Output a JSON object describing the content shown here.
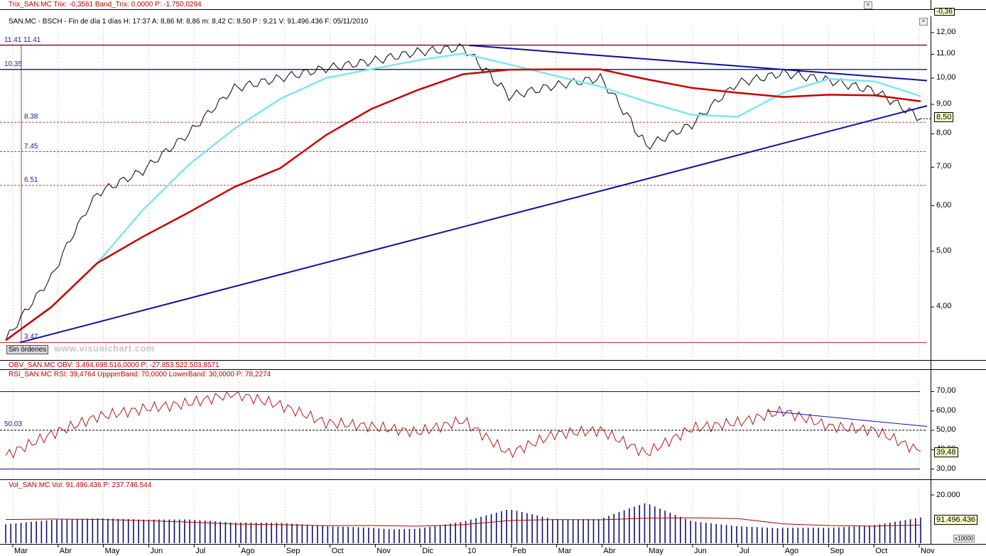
{
  "panels": {
    "trix": {
      "header": "Trix_SAN.MC  Trix: -0,3561  Band_Trix: 0,0000  P: -1.750,0294",
      "value_box": "-0,36"
    },
    "price": {
      "header": "SAN.MC - BSCH - Fin de día 1 días  H: 17:37  A: 8,86  M: 8,86  m: 8,42  C: 8,50  P : 9,21  V: 91.496.436  F: 05/11/2010",
      "header_color_part": "P : 9,21",
      "value_box": "8,50",
      "ticks": [
        "12,00",
        "11,00",
        "10,00",
        "9,00",
        "8,00",
        "7,00",
        "6,00",
        "5,00",
        "4,00"
      ],
      "levels": [
        {
          "label": "11.41  11.41",
          "value": 11.41
        },
        {
          "label": "10.35",
          "value": 10.35
        },
        {
          "label": "8.38",
          "value": 8.38
        },
        {
          "label": "7.45",
          "value": 7.45
        },
        {
          "label": "6.51",
          "value": 6.51
        },
        {
          "label": "3.47",
          "value": 3.47
        }
      ],
      "button": "Sin órdenes",
      "watermark": "www.visualchart.com"
    },
    "obv": {
      "header": "OBV_SAN.MC  OBV: 3.494.698.516,0000  P: -27.853.522.503,8571"
    },
    "rsi": {
      "header": "RSI_SAN.MC  RSI: 39,4764  UppperBand: 70,0000  LowerBand: 30,0000  P: 78,2274",
      "value_box": "39,48",
      "ticks": [
        "70,00",
        "60,00",
        "50,00",
        "40,00",
        "30,00"
      ],
      "level_label": "50.03"
    },
    "vol": {
      "header": "Vol_SAN.MC  Vol: 91.496.436  P: 237.746.544",
      "value_box": "91.496.436",
      "ticks": [
        "20.000"
      ],
      "multiplier": "x10000"
    }
  },
  "months": [
    "Mar",
    "Abr",
    "May",
    "Jun",
    "Jul",
    "Ago",
    "Sep",
    "Oct",
    "Nov",
    "Dic",
    "10",
    "Feb",
    "Mar",
    "Abr",
    "May",
    "Jun",
    "Jul",
    "Ago",
    "Sep",
    "Oct",
    "Nov"
  ],
  "colors": {
    "price_line": "#000000",
    "ma_fast": "#7fe5f0",
    "ma_slow": "#c80000",
    "trend": "#1010a0",
    "rsi": "#b00000",
    "volume": "#101070"
  },
  "chart_data": [
    {
      "type": "line",
      "title": "SAN.MC - BSCH - Fin de día 1 días",
      "categories": [
        "Mar",
        "Abr",
        "May",
        "Jun",
        "Jul",
        "Ago",
        "Sep",
        "Oct",
        "Nov",
        "Dic",
        "10",
        "Feb",
        "Mar",
        "Abr",
        "May",
        "Jun",
        "Jul",
        "Ago",
        "Sep",
        "Oct",
        "Nov"
      ],
      "ylim": [
        3.3,
        12.2
      ],
      "yscale": "log",
      "series": [
        {
          "values": [
            3.5,
            4.5,
            6.3,
            6.9,
            8.0,
            9.6,
            10.0,
            10.4,
            10.7,
            11.1,
            11.3,
            9.3,
            9.7,
            10.0,
            7.6,
            8.3,
            9.8,
            10.2,
            9.9,
            9.5,
            8.5
          ]
        }
      ],
      "close": 8.5
    },
    {
      "type": "line",
      "title": "RSI_SAN.MC",
      "ylim": [
        28,
        72
      ],
      "series": [
        {
          "values": [
            37,
            48,
            57,
            61,
            64,
            69,
            63,
            54,
            52,
            49,
            55,
            38,
            48,
            50,
            38,
            51,
            54,
            60,
            52,
            50,
            39
          ]
        }
      ],
      "bands": [
        30,
        70
      ],
      "level": 50.03
    },
    {
      "type": "bar",
      "title": "Vol_SAN.MC",
      "ylim": [
        0,
        20000
      ],
      "unit": "x10000",
      "series": [
        {
          "values": [
            9800,
            10200,
            9600,
            8400,
            8200,
            7200,
            7600,
            7000,
            7400,
            6800,
            8800,
            12500,
            8200,
            8400,
            14500,
            8600,
            7600,
            7800,
            6600,
            6900,
            9149
          ]
        }
      ]
    }
  ]
}
